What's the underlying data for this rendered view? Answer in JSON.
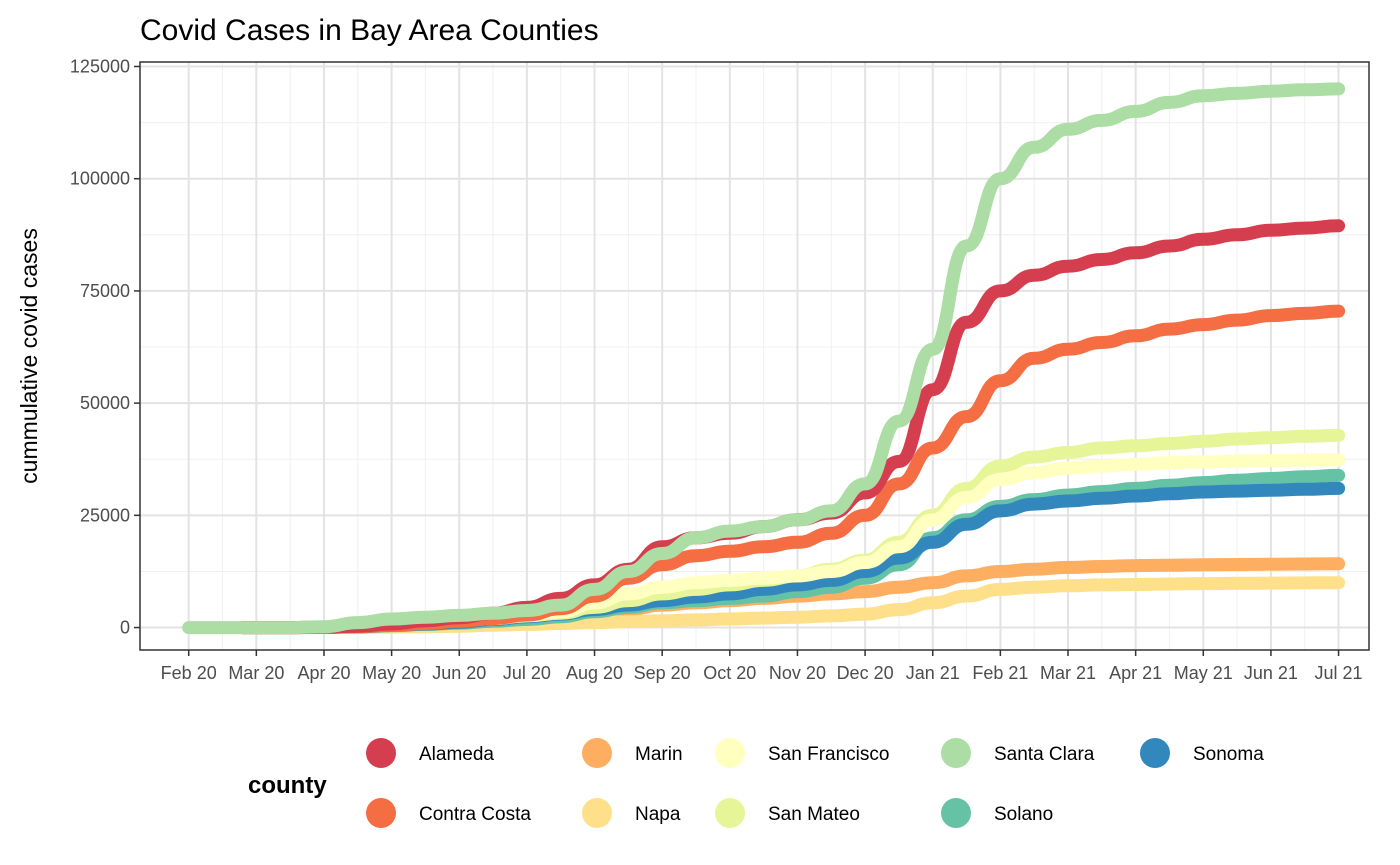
{
  "chart_data": {
    "type": "scatter",
    "title": "Covid Cases in Bay Area Counties",
    "xlabel": "",
    "ylabel": "cummulative covid cases",
    "x_tick_labels": [
      "Feb 20",
      "Mar 20",
      "Apr 20",
      "May 20",
      "Jun 20",
      "Jul 20",
      "Aug 20",
      "Sep 20",
      "Oct 20",
      "Nov 20",
      "Dec 20",
      "Jan 21",
      "Feb 21",
      "Mar 21",
      "Apr 21",
      "May 21",
      "Jun 21",
      "Jul 21"
    ],
    "y_ticks": [
      0,
      25000,
      50000,
      75000,
      100000,
      125000
    ],
    "y_tick_labels": [
      "0",
      "25000",
      "50000",
      "75000",
      "100000",
      "125000"
    ],
    "ylim": [
      -5000,
      126000
    ],
    "xlim_months": [
      -0.72,
      17.45
    ],
    "grid": true,
    "legend": {
      "title": "county",
      "position": "bottom"
    },
    "series_x_months": [
      0,
      0.5,
      1,
      1.5,
      2,
      2.5,
      3,
      3.5,
      4,
      4.5,
      5,
      5.5,
      6,
      6.5,
      7,
      7.5,
      8,
      8.5,
      9,
      9.5,
      10,
      10.5,
      11,
      11.5,
      12,
      12.5,
      13,
      13.5,
      14,
      14.5,
      15,
      15.5,
      16,
      16.5,
      17
    ],
    "series": [
      {
        "name": "Alameda",
        "color": "#D53E4F",
        "start": 0.8,
        "values": [
          0,
          0,
          0,
          0,
          100,
          300,
          800,
          1500,
          2200,
          3200,
          4500,
          6500,
          9500,
          13000,
          18000,
          20000,
          21000,
          22500,
          24000,
          25500,
          30000,
          37000,
          53000,
          68000,
          75000,
          78500,
          80500,
          82000,
          83500,
          85000,
          86500,
          87500,
          88500,
          89000,
          89500
        ]
      },
      {
        "name": "Contra Costa",
        "color": "#F46D43",
        "start": 0.8,
        "values": [
          0,
          0,
          0,
          0,
          80,
          200,
          500,
          900,
          1400,
          2000,
          2800,
          4200,
          7000,
          11000,
          14000,
          16000,
          17000,
          18000,
          19000,
          21000,
          25000,
          32000,
          40000,
          47000,
          55000,
          60000,
          62000,
          63500,
          65000,
          66500,
          67500,
          68500,
          69500,
          70000,
          70500
        ]
      },
      {
        "name": "Marin",
        "color": "#FDAE61",
        "start": 0.8,
        "values": [
          0,
          0,
          0,
          0,
          60,
          150,
          300,
          500,
          800,
          1200,
          1600,
          2200,
          3000,
          4000,
          5000,
          5500,
          6000,
          6500,
          7000,
          7500,
          8000,
          9000,
          10000,
          11500,
          12500,
          13000,
          13400,
          13600,
          13800,
          13900,
          14000,
          14050,
          14100,
          14150,
          14200
        ]
      },
      {
        "name": "Napa",
        "color": "#FEE08B",
        "start": 0.8,
        "values": [
          0,
          0,
          0,
          0,
          20,
          50,
          100,
          200,
          300,
          500,
          700,
          900,
          1100,
          1300,
          1500,
          1700,
          1900,
          2100,
          2300,
          2600,
          3000,
          4000,
          5500,
          7000,
          8500,
          9000,
          9300,
          9500,
          9600,
          9700,
          9800,
          9850,
          9900,
          9950,
          10000
        ]
      },
      {
        "name": "San Francisco",
        "color": "#FFFFBF",
        "start": 0.8,
        "values": [
          0,
          0,
          0,
          0,
          120,
          350,
          700,
          1100,
          1500,
          2000,
          2700,
          3500,
          5500,
          7500,
          9000,
          10000,
          10500,
          11000,
          11500,
          12500,
          14500,
          18000,
          24000,
          29000,
          33000,
          34500,
          35500,
          36000,
          36400,
          36700,
          36900,
          37100,
          37200,
          37300,
          37400
        ]
      },
      {
        "name": "San Mateo",
        "color": "#E6F598",
        "start": 0.8,
        "values": [
          0,
          0,
          0,
          0,
          100,
          300,
          600,
          1000,
          1500,
          2000,
          2600,
          3200,
          4500,
          6000,
          7500,
          8500,
          9500,
          10500,
          11500,
          13000,
          15000,
          19000,
          25000,
          31000,
          36000,
          38000,
          39000,
          40000,
          40500,
          41000,
          41500,
          42000,
          42300,
          42600,
          42800
        ]
      },
      {
        "name": "Santa Clara",
        "color": "#ABDDA4",
        "start": -0.1,
        "values": [
          0,
          0,
          0,
          0,
          200,
          1100,
          1900,
          2300,
          2700,
          3200,
          3800,
          5000,
          8500,
          12500,
          16500,
          20000,
          21500,
          22500,
          24000,
          26000,
          32000,
          46000,
          62000,
          85000,
          100000,
          107000,
          111000,
          113000,
          115000,
          117000,
          118500,
          119000,
          119500,
          119800,
          120000
        ]
      },
      {
        "name": "Solano",
        "color": "#66C2A5",
        "start": 0.8,
        "values": [
          0,
          0,
          0,
          0,
          50,
          150,
          400,
          700,
          1000,
          1400,
          1800,
          2400,
          3500,
          4500,
          5500,
          6000,
          6500,
          7000,
          8000,
          9000,
          11000,
          14000,
          20000,
          24000,
          27000,
          28500,
          29500,
          30300,
          31000,
          31700,
          32300,
          32800,
          33200,
          33600,
          33900
        ]
      },
      {
        "name": "Sonoma",
        "color": "#3288BD",
        "start": 0.8,
        "values": [
          0,
          0,
          0,
          0,
          80,
          200,
          500,
          800,
          1200,
          1800,
          2400,
          3000,
          4000,
          5000,
          6000,
          6800,
          7500,
          8500,
          9500,
          10500,
          12500,
          15500,
          19000,
          23000,
          26000,
          27500,
          28200,
          28800,
          29300,
          29800,
          30200,
          30400,
          30600,
          30800,
          31000
        ]
      }
    ]
  }
}
